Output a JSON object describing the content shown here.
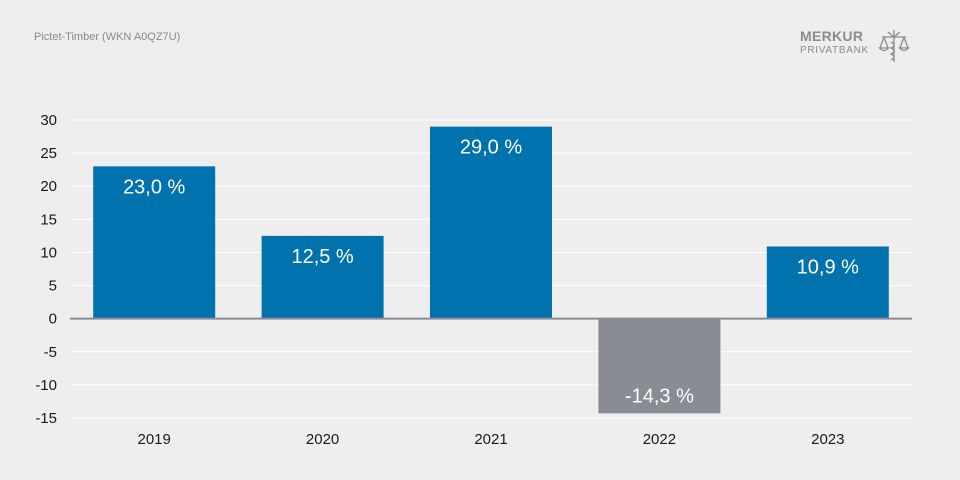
{
  "header": {
    "subtitle": "Pictet-Timber (WKN A0QZ7U)",
    "logo_text_primary": "MERKUR",
    "logo_text_secondary": "PRIVATBANK",
    "logo_icon": "scales-caduceus-icon"
  },
  "colors": {
    "background": "#eeeeee",
    "positive_bar": "#0072ae",
    "negative_bar": "#8a8c94",
    "gridline": "#ffffff",
    "zero_line": "#8a8c94",
    "logo": "#8c8c8c"
  },
  "chart_data": {
    "type": "bar",
    "categories": [
      "2019",
      "2020",
      "2021",
      "2022",
      "2023"
    ],
    "values": [
      23.0,
      12.5,
      29.0,
      -14.3,
      10.9
    ],
    "data_labels": [
      "23,0 %",
      "12,5 %",
      "29,0 %",
      "-14,3 %",
      "10,9 %"
    ],
    "ylim": [
      -15,
      30
    ],
    "yticks": [
      30,
      25,
      20,
      15,
      10,
      5,
      0,
      -5,
      -10,
      -15
    ],
    "grid": true,
    "title": "",
    "xlabel": "",
    "ylabel": ""
  }
}
